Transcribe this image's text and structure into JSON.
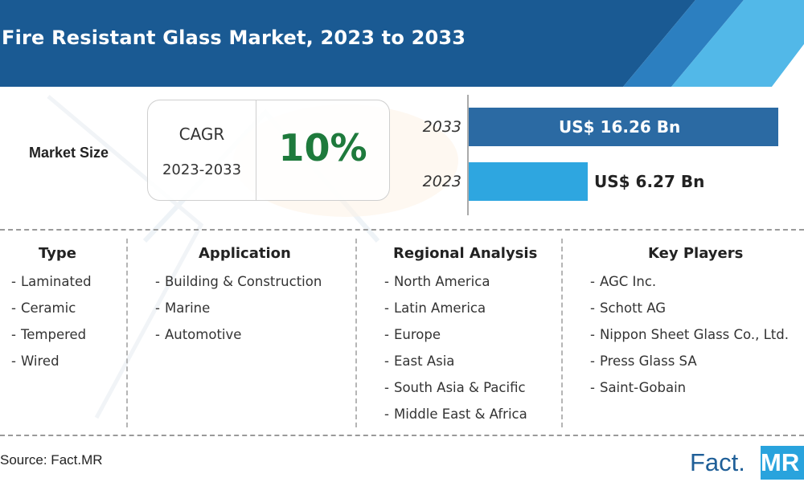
{
  "header": {
    "title": "Fire Resistant Glass Market, 2023 to 2033"
  },
  "market_size": {
    "label": "Market Size",
    "cagr_label": "CAGR",
    "cagr_period": "2023-2033",
    "cagr_value": "10%"
  },
  "chart_data": {
    "type": "bar",
    "orientation": "horizontal",
    "categories": [
      "2033",
      "2023"
    ],
    "values": [
      16.26,
      6.27
    ],
    "value_labels": [
      "US$ 16.26 Bn",
      "US$ 6.27 Bn"
    ],
    "colors": [
      "#2b6aa3",
      "#2ea6e0"
    ],
    "xlim": [
      0,
      16.26
    ]
  },
  "columns": [
    {
      "heading": "Type",
      "items": [
        "Laminated",
        "Ceramic",
        "Tempered",
        "Wired"
      ]
    },
    {
      "heading": "Application",
      "items": [
        "Building & Construction",
        "Marine",
        "Automotive"
      ]
    },
    {
      "heading": "Regional Analysis",
      "items": [
        "North America",
        "Latin America",
        "Europe",
        "East Asia",
        "South Asia & Pacific",
        "Middle East & Africa"
      ]
    },
    {
      "heading": "Key Players",
      "items": [
        "AGC Inc.",
        "Schott AG",
        "Nippon Sheet Glass Co., Ltd.",
        "Press Glass SA",
        "Saint-Gobain"
      ]
    }
  ],
  "footer": {
    "source": "Source: Fact.MR",
    "logo_part1": "Fact.",
    "logo_part2": "MR"
  },
  "colors": {
    "header_dark": "#1a5a93",
    "header_mid": "#2c7fc0",
    "header_light": "#52b8e8",
    "cagr_green": "#1e7a3c"
  }
}
